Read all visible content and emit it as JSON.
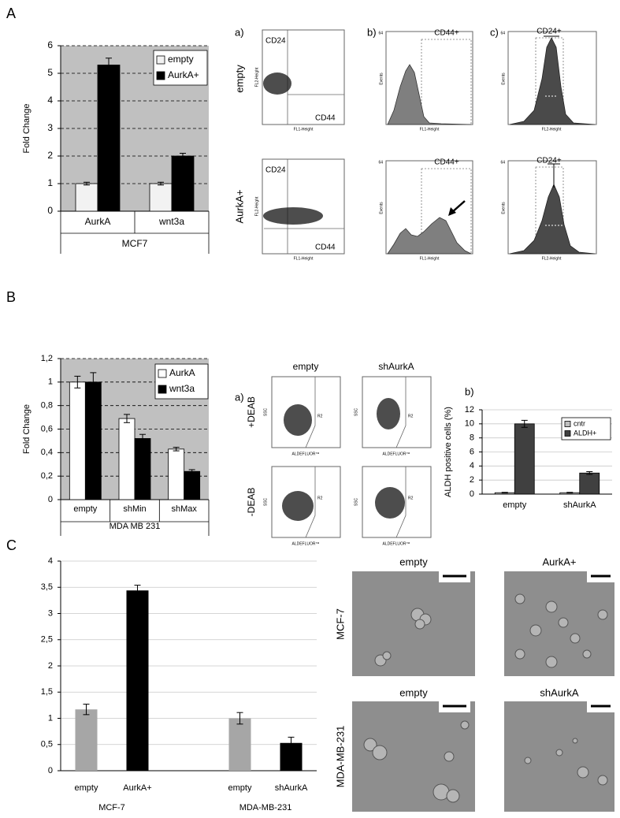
{
  "panel_labels": [
    "A",
    "B",
    "C"
  ],
  "chart_data": [
    {
      "type": "bar",
      "y_label": "Fold Change",
      "categories": [
        "AurkA",
        "wnt3a"
      ],
      "group_label": "MCF7",
      "series": [
        {
          "name": "empty",
          "color": "#f2f2f2",
          "values": [
            1,
            1
          ],
          "errors": [
            0.05,
            0.05
          ]
        },
        {
          "name": "AurkA+",
          "color": "#000000",
          "values": [
            5.3,
            2.0
          ],
          "errors": [
            0.25,
            0.1
          ]
        }
      ],
      "ylim": [
        0,
        6
      ],
      "yticks": [
        0,
        1,
        2,
        3,
        4,
        5,
        6
      ],
      "grid": true,
      "grid_style": "dashed",
      "background": "#c0c0c0",
      "legend": "top-right"
    },
    {
      "type": "bar",
      "y_label": "Fold Change",
      "categories": [
        "empty",
        "shMin",
        "shMax"
      ],
      "group_label": "MDA MB 231",
      "series": [
        {
          "name": "AurkA",
          "color": "#ffffff",
          "values": [
            1.0,
            0.69,
            0.43
          ],
          "errors": [
            0.05,
            0.035,
            0.015
          ]
        },
        {
          "name": "wnt3a",
          "color": "#000000",
          "values": [
            1.0,
            0.52,
            0.24
          ],
          "errors": [
            0.08,
            0.035,
            0.015
          ]
        }
      ],
      "ylim": [
        0,
        1.2
      ],
      "yticks": [
        0,
        {
          "value": 0.2,
          "label": "0,2"
        },
        {
          "value": 0.4,
          "label": "0,4"
        },
        {
          "value": 0.6,
          "label": "0,6"
        },
        {
          "value": 0.8,
          "label": "0,8"
        },
        1,
        {
          "value": 1.2,
          "label": "1,2"
        }
      ],
      "grid": true,
      "grid_style": "dashed",
      "background": "#c0c0c0",
      "legend": "top-right"
    },
    {
      "type": "bar",
      "y_label": "ALDH positive cells (%)",
      "categories": [
        "empty",
        "shAurkA"
      ],
      "series": [
        {
          "name": "cntr",
          "color": "#bfbfbf",
          "values": [
            0.2,
            0.2
          ],
          "errors": [
            0.05,
            0.05
          ]
        },
        {
          "name": "ALDH+",
          "color": "#404040",
          "values": [
            10,
            3
          ],
          "errors": [
            0.5,
            0.2
          ]
        }
      ],
      "ylim": [
        0,
        12
      ],
      "yticks": [
        0,
        2,
        4,
        6,
        8,
        10,
        12
      ],
      "grid": true,
      "grid_style": "solid",
      "legend": "top-right"
    },
    {
      "type": "bar",
      "categories": [
        "empty",
        "AurkA+",
        null,
        "empty",
        "shAurkA"
      ],
      "groups": [
        "MCF-7",
        "MDA-MB-231"
      ],
      "values": [
        1.17,
        3.44,
        null,
        1.0,
        0.53
      ],
      "errors": [
        0.1,
        0.1,
        null,
        0.11,
        0.11
      ],
      "colors": [
        "#a6a6a6",
        "#000000",
        null,
        "#a6a6a6",
        "#000000"
      ],
      "ylim": [
        0,
        4
      ],
      "yticks": [
        0,
        {
          "value": 0.5,
          "label": "0,5"
        },
        1,
        {
          "value": 1.5,
          "label": "1,5"
        },
        2,
        {
          "value": 2.5,
          "label": "2,5"
        },
        3,
        {
          "value": 3.5,
          "label": "3,5"
        },
        4
      ],
      "grid": true,
      "grid_style": "solid"
    }
  ],
  "flow_A": {
    "subpanels": [
      "a)",
      "b)",
      "c)"
    ],
    "rows": [
      "empty",
      "AurkA+"
    ],
    "scatter_labels": [
      "CD24",
      "CD44"
    ],
    "gate_b": "CD44+",
    "gate_c": "CD24+",
    "events": "Events",
    "fl1": "FL1-Height",
    "fl2": "FL2-Height",
    "hist_max": "64"
  },
  "flow_B": {
    "subpanels": [
      "a)",
      "b)"
    ],
    "columns": [
      "empty",
      "shAurkA"
    ],
    "rows": [
      "+DEAB",
      "-DEAB"
    ],
    "y_label": "SSC",
    "x_label": "ALDEFLUOR™",
    "gate": "R2"
  },
  "micrographs": {
    "top": [
      "empty",
      "AurkA+"
    ],
    "bottom": [
      "empty",
      "shAurkA"
    ],
    "rows": [
      "MCF-7",
      "MDA-MB-231"
    ]
  }
}
